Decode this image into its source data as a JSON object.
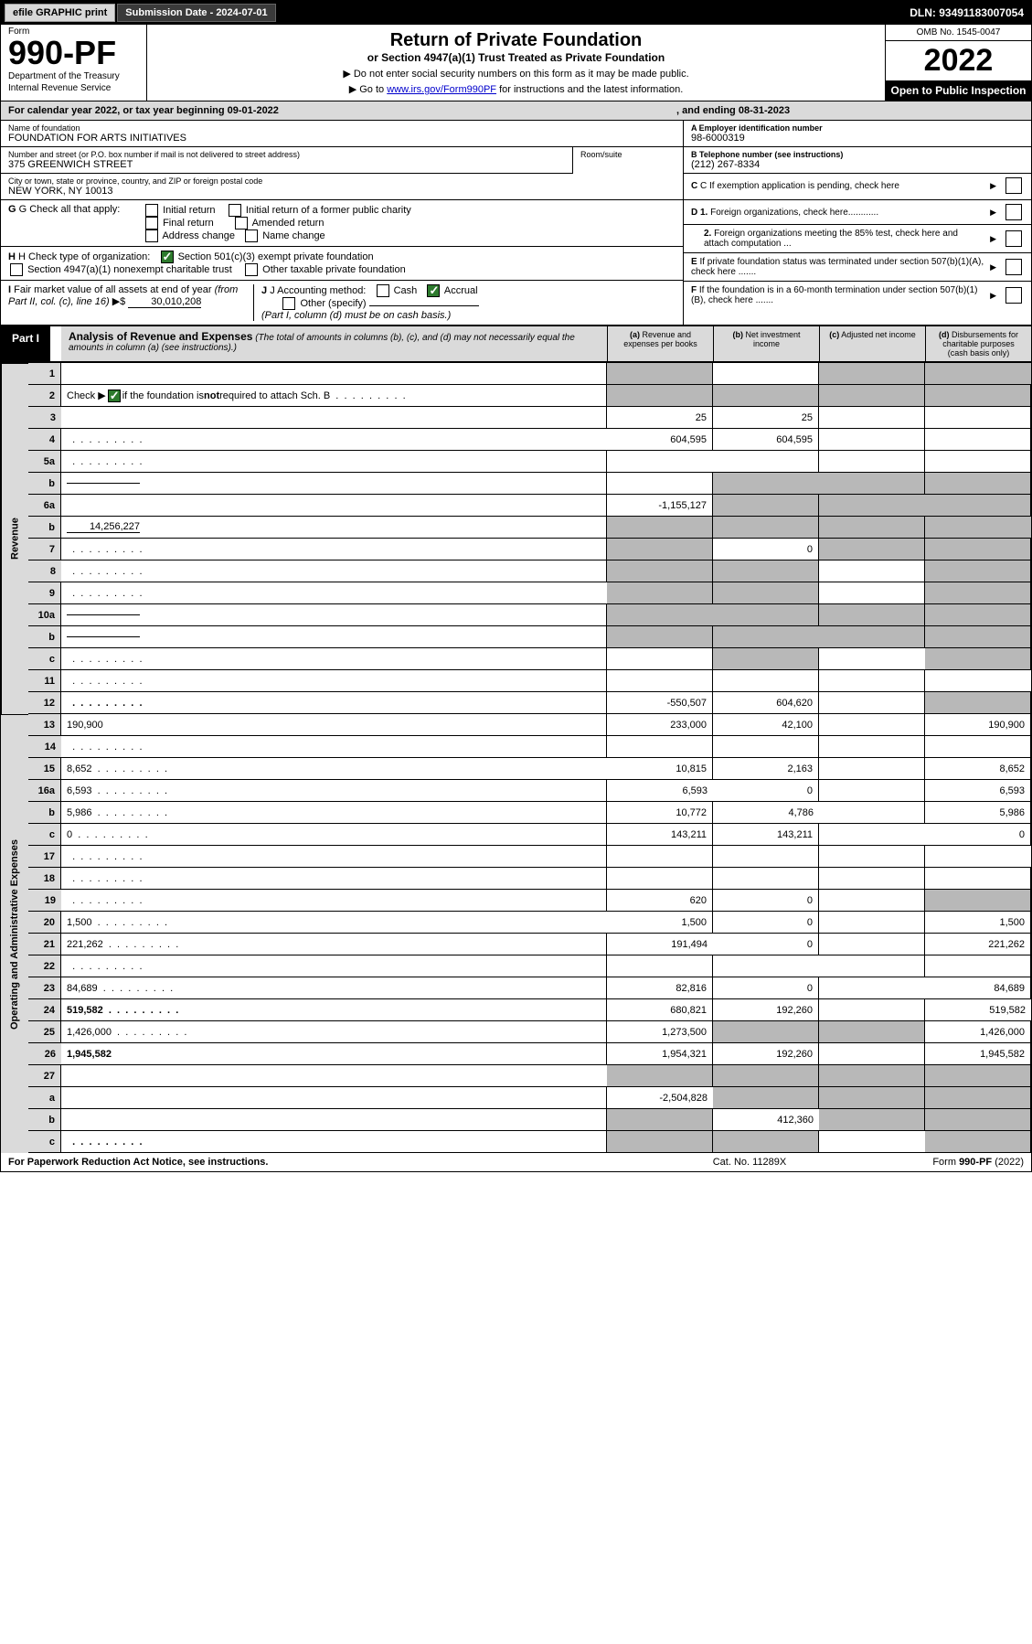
{
  "toolbar": {
    "efile": "efile GRAPHIC print",
    "submission_label": "Submission Date - 2024-07-01",
    "dln": "DLN: 93491183007054"
  },
  "header": {
    "form_word": "Form",
    "form_number": "990-PF",
    "dept1": "Department of the Treasury",
    "dept2": "Internal Revenue Service",
    "title": "Return of Private Foundation",
    "subtitle": "or Section 4947(a)(1) Trust Treated as Private Foundation",
    "note1": "▶ Do not enter social security numbers on this form as it may be made public.",
    "note2_pre": "▶ Go to ",
    "note2_link": "www.irs.gov/Form990PF",
    "note2_post": " for instructions and the latest information.",
    "omb": "OMB No. 1545-0047",
    "year": "2022",
    "open": "Open to Public Inspection"
  },
  "cal": {
    "text_l": "For calendar year 2022, or tax year beginning 09-01-2022",
    "text_m": ", and ending 08-31-2023"
  },
  "info": {
    "name_lbl": "Name of foundation",
    "name_val": "FOUNDATION FOR ARTS INITIATIVES",
    "addr_lbl": "Number and street (or P.O. box number if mail is not delivered to street address)",
    "addr_val": "375 GREENWICH STREET",
    "room_lbl": "Room/suite",
    "city_lbl": "City or town, state or province, country, and ZIP or foreign postal code",
    "city_val": "NEW YORK, NY  10013",
    "a_lbl": "A Employer identification number",
    "a_val": "98-6000319",
    "b_lbl": "B Telephone number (see instructions)",
    "b_val": "(212) 267-8334",
    "c_lbl": "C If exemption application is pending, check here",
    "d1_lbl": "D 1. Foreign organizations, check here............",
    "d2_lbl": "2. Foreign organizations meeting the 85% test, check here and attach computation ...",
    "e_lbl": "E  If private foundation status was terminated under section 507(b)(1)(A), check here .......",
    "f_lbl": "F  If the foundation is in a 60-month termination under section 507(b)(1)(B), check here .......",
    "g_lbl": "G Check all that apply:",
    "g_opts": [
      "Initial return",
      "Initial return of a former public charity",
      "Final return",
      "Amended return",
      "Address change",
      "Name change"
    ],
    "h_lbl": "H Check type of organization:",
    "h_opts": [
      "Section 501(c)(3) exempt private foundation",
      "Section 4947(a)(1) nonexempt charitable trust",
      "Other taxable private foundation"
    ],
    "i_lbl": "I Fair market value of all assets at end of year (from Part II, col. (c), line 16) ▶$",
    "i_val": "30,010,208",
    "j_lbl": "J Accounting method:",
    "j_opts": [
      "Cash",
      "Accrual",
      "Other (specify)"
    ],
    "j_note": "(Part I, column (d) must be on cash basis.)"
  },
  "part1": {
    "tab": "Part I",
    "title": "Analysis of Revenue and Expenses",
    "title_note": "(The total of amounts in columns (b), (c), and (d) may not necessarily equal the amounts in column (a) (see instructions).)",
    "cols": {
      "a": "Revenue and expenses per books",
      "b": "Net investment income",
      "c": "Adjusted net income",
      "d": "Disbursements for charitable purposes (cash basis only)"
    }
  },
  "sections": {
    "revenue": "Revenue",
    "opexp": "Operating and Administrative Expenses"
  },
  "rows": [
    {
      "n": "1",
      "d": "",
      "a": "",
      "b": "",
      "c": "",
      "sa": 1,
      "sb": 0,
      "sc": 1,
      "sd": 1
    },
    {
      "n": "2",
      "d": "",
      "a": "",
      "b": "",
      "c": "",
      "sa": 1,
      "sb": 1,
      "sc": 1,
      "sd": 1,
      "checked": true,
      "dots": 1
    },
    {
      "n": "3",
      "d": "",
      "a": "25",
      "b": "25",
      "c": ""
    },
    {
      "n": "4",
      "d": "",
      "a": "604,595",
      "b": "604,595",
      "c": "",
      "dots": 1
    },
    {
      "n": "5a",
      "d": "",
      "a": "",
      "b": "",
      "c": "",
      "dots": 1
    },
    {
      "n": "b",
      "d": "",
      "a": "",
      "b": "",
      "c": "",
      "sa": 0,
      "sb": 1,
      "sc": 1,
      "sd": 1,
      "inline": 1
    },
    {
      "n": "6a",
      "d": "",
      "a": "-1,155,127",
      "b": "",
      "c": "",
      "sb": 1,
      "sc": 1,
      "sd": 1
    },
    {
      "n": "b",
      "d": "",
      "a": "",
      "b": "",
      "c": "",
      "sa": 1,
      "sb": 1,
      "sc": 1,
      "sd": 1,
      "inline": 1,
      "inlineval": "14,256,227"
    },
    {
      "n": "7",
      "d": "",
      "a": "",
      "b": "0",
      "c": "",
      "sa": 1,
      "sc": 1,
      "sd": 1,
      "dots": 1
    },
    {
      "n": "8",
      "d": "",
      "a": "",
      "b": "",
      "c": "",
      "sa": 1,
      "sb": 1,
      "sd": 1,
      "dots": 1
    },
    {
      "n": "9",
      "d": "",
      "a": "",
      "b": "",
      "c": "",
      "sa": 1,
      "sb": 1,
      "sd": 1,
      "dots": 1
    },
    {
      "n": "10a",
      "d": "",
      "a": "",
      "b": "",
      "c": "",
      "sa": 1,
      "sb": 1,
      "sc": 1,
      "sd": 1,
      "inline": 1
    },
    {
      "n": "b",
      "d": "",
      "a": "",
      "b": "",
      "c": "",
      "sa": 1,
      "sb": 1,
      "sc": 1,
      "sd": 1,
      "inline": 1,
      "dots": 1
    },
    {
      "n": "c",
      "d": "",
      "a": "",
      "b": "",
      "c": "",
      "sb": 1,
      "sd": 1,
      "dots": 1
    },
    {
      "n": "11",
      "d": "",
      "a": "",
      "b": "",
      "c": "",
      "dots": 1
    },
    {
      "n": "12",
      "d": "",
      "a": "-550,507",
      "b": "604,620",
      "c": "",
      "bold": 1,
      "sd": 1,
      "dots": 1
    },
    {
      "n": "13",
      "d": "190,900",
      "a": "233,000",
      "b": "42,100",
      "c": ""
    },
    {
      "n": "14",
      "d": "",
      "a": "",
      "b": "",
      "c": "",
      "dots": 1
    },
    {
      "n": "15",
      "d": "8,652",
      "a": "10,815",
      "b": "2,163",
      "c": "",
      "dots": 1
    },
    {
      "n": "16a",
      "d": "6,593",
      "a": "6,593",
      "b": "0",
      "c": "",
      "dots": 1
    },
    {
      "n": "b",
      "d": "5,986",
      "a": "10,772",
      "b": "4,786",
      "c": "",
      "dots": 1
    },
    {
      "n": "c",
      "d": "0",
      "a": "143,211",
      "b": "143,211",
      "c": "",
      "dots": 1
    },
    {
      "n": "17",
      "d": "",
      "a": "",
      "b": "",
      "c": "",
      "dots": 1
    },
    {
      "n": "18",
      "d": "",
      "a": "",
      "b": "",
      "c": "",
      "dots": 1
    },
    {
      "n": "19",
      "d": "",
      "a": "620",
      "b": "0",
      "c": "",
      "sd": 1,
      "dots": 1
    },
    {
      "n": "20",
      "d": "1,500",
      "a": "1,500",
      "b": "0",
      "c": "",
      "dots": 1
    },
    {
      "n": "21",
      "d": "221,262",
      "a": "191,494",
      "b": "0",
      "c": "",
      "dots": 1
    },
    {
      "n": "22",
      "d": "",
      "a": "",
      "b": "",
      "c": "",
      "dots": 1
    },
    {
      "n": "23",
      "d": "84,689",
      "a": "82,816",
      "b": "0",
      "c": "",
      "dots": 1
    },
    {
      "n": "24",
      "d": "519,582",
      "a": "680,821",
      "b": "192,260",
      "c": "",
      "bold": 1,
      "dots": 1
    },
    {
      "n": "25",
      "d": "1,426,000",
      "a": "1,273,500",
      "b": "",
      "c": "",
      "sb": 1,
      "sc": 1,
      "dots": 1
    },
    {
      "n": "26",
      "d": "1,945,582",
      "a": "1,954,321",
      "b": "192,260",
      "c": "",
      "bold": 1
    },
    {
      "n": "27",
      "d": "",
      "a": "",
      "b": "",
      "c": "",
      "sa": 1,
      "sb": 1,
      "sc": 1,
      "sd": 1
    },
    {
      "n": "a",
      "d": "",
      "a": "-2,504,828",
      "b": "",
      "c": "",
      "bold": 1,
      "sb": 1,
      "sc": 1,
      "sd": 1
    },
    {
      "n": "b",
      "d": "",
      "a": "",
      "b": "412,360",
      "c": "",
      "bold": 1,
      "sa": 1,
      "sc": 1,
      "sd": 1
    },
    {
      "n": "c",
      "d": "",
      "a": "",
      "b": "",
      "c": "",
      "bold": 1,
      "sa": 1,
      "sb": 1,
      "sd": 1,
      "dots": 1
    }
  ],
  "footer": {
    "l": "For Paperwork Reduction Act Notice, see instructions.",
    "c": "Cat. No. 11289X",
    "r": "Form 990-PF (2022)"
  },
  "colors": {
    "shade": "#b8b8b8",
    "light_shade": "#dadada",
    "link": "#0000cc",
    "check_green": "#2d7a2d"
  }
}
